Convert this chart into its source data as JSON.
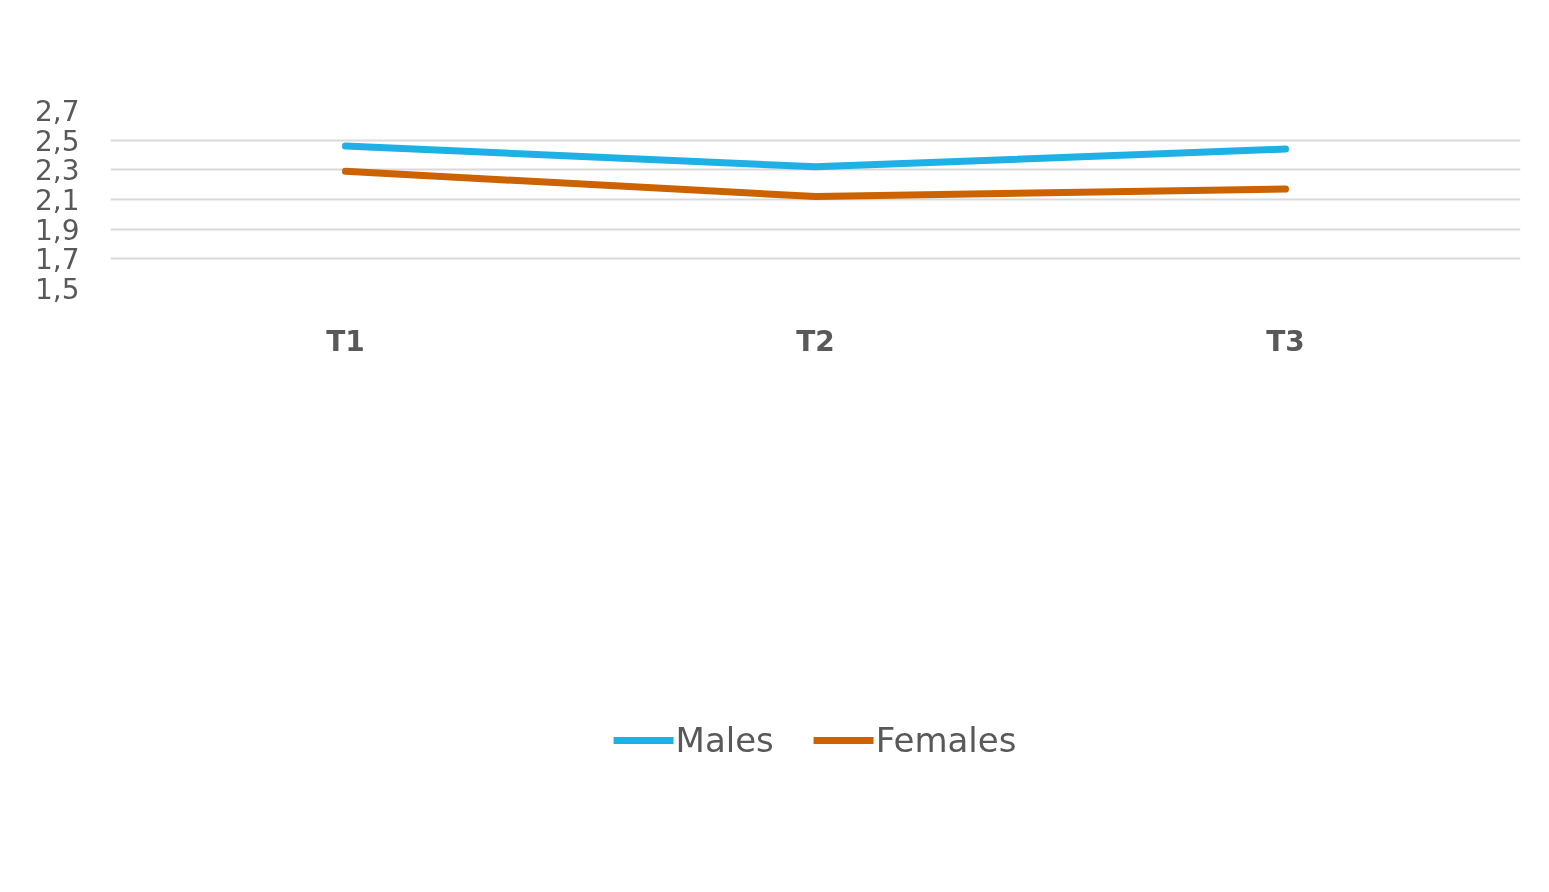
{
  "chart_data": {
    "type": "line",
    "categories": [
      "T1",
      "T2",
      "T3"
    ],
    "series": [
      {
        "name": "Males",
        "color": "#1fb0e6",
        "values": [
          2.46,
          2.32,
          2.44
        ]
      },
      {
        "name": "Females",
        "color": "#cc6300",
        "values": [
          2.29,
          2.12,
          2.17
        ]
      }
    ],
    "ylim": [
      1.5,
      2.7
    ],
    "yticks": [
      {
        "value": 1.5,
        "label": "1,5"
      },
      {
        "value": 1.7,
        "label": "1,7"
      },
      {
        "value": 1.9,
        "label": "1,9"
      },
      {
        "value": 2.1,
        "label": "2,1"
      },
      {
        "value": 2.3,
        "label": "2,3"
      },
      {
        "value": 2.5,
        "label": "2,5"
      },
      {
        "value": 2.7,
        "label": "2,7"
      }
    ],
    "grid": "y",
    "legend": "bottom",
    "marker": "none",
    "line_style": "solid"
  }
}
